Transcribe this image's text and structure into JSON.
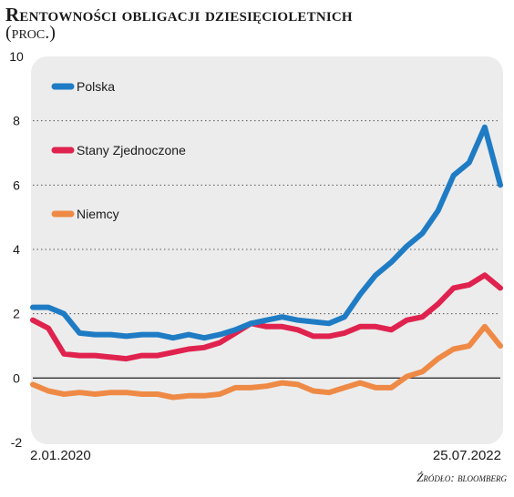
{
  "title": "Rentowności obligacji dziesięcioletnich",
  "subtitle": "(proc.)",
  "source": "Źródło: bloomberg",
  "colors": {
    "panel": "#ececec",
    "grid": "#555555",
    "zero_line": "#333333",
    "text": "#1a1a1a"
  },
  "chart_data": {
    "type": "line",
    "title": "Rentowności obligacji dziesięcioletnich",
    "subtitle": "(proc.)",
    "xlabel": "",
    "ylabel": "",
    "x_tick_labels": [
      "2.01.2020",
      "25.07.2022"
    ],
    "x": [
      "2020-01",
      "2020-02",
      "2020-03",
      "2020-04",
      "2020-05",
      "2020-06",
      "2020-07",
      "2020-08",
      "2020-09",
      "2020-10",
      "2020-11",
      "2020-12",
      "2021-01",
      "2021-02",
      "2021-03",
      "2021-04",
      "2021-05",
      "2021-06",
      "2021-07",
      "2021-08",
      "2021-09",
      "2021-10",
      "2021-11",
      "2021-12",
      "2022-01",
      "2022-02",
      "2022-03",
      "2022-04",
      "2022-05",
      "2022-06",
      "2022-07"
    ],
    "ylim": [
      -2,
      10
    ],
    "y_ticks": [
      -2,
      0,
      2,
      4,
      6,
      8,
      10
    ],
    "grid": "dotted horizontal",
    "legend_placement": "top-left inside",
    "series": [
      {
        "name": "Polska",
        "color": "#1f7cc4",
        "values": [
          2.2,
          2.2,
          2.0,
          1.4,
          1.35,
          1.35,
          1.3,
          1.35,
          1.35,
          1.25,
          1.35,
          1.25,
          1.35,
          1.5,
          1.7,
          1.8,
          1.9,
          1.8,
          1.75,
          1.7,
          1.9,
          2.6,
          3.2,
          3.6,
          4.1,
          4.5,
          5.2,
          6.3,
          6.7,
          7.8,
          6.0
        ]
      },
      {
        "name": "Stany Zjednoczone",
        "color": "#e0224e",
        "values": [
          1.8,
          1.55,
          0.75,
          0.7,
          0.7,
          0.65,
          0.6,
          0.7,
          0.7,
          0.8,
          0.9,
          0.95,
          1.1,
          1.4,
          1.7,
          1.6,
          1.6,
          1.5,
          1.3,
          1.3,
          1.4,
          1.6,
          1.6,
          1.5,
          1.8,
          1.9,
          2.3,
          2.8,
          2.9,
          3.2,
          2.8
        ]
      },
      {
        "name": "Niemcy",
        "color": "#ee8a45",
        "values": [
          -0.2,
          -0.4,
          -0.5,
          -0.45,
          -0.5,
          -0.45,
          -0.45,
          -0.5,
          -0.5,
          -0.6,
          -0.55,
          -0.55,
          -0.5,
          -0.3,
          -0.3,
          -0.25,
          -0.15,
          -0.2,
          -0.4,
          -0.45,
          -0.3,
          -0.15,
          -0.3,
          -0.3,
          0.05,
          0.2,
          0.6,
          0.9,
          1.0,
          1.6,
          1.0
        ]
      }
    ]
  }
}
